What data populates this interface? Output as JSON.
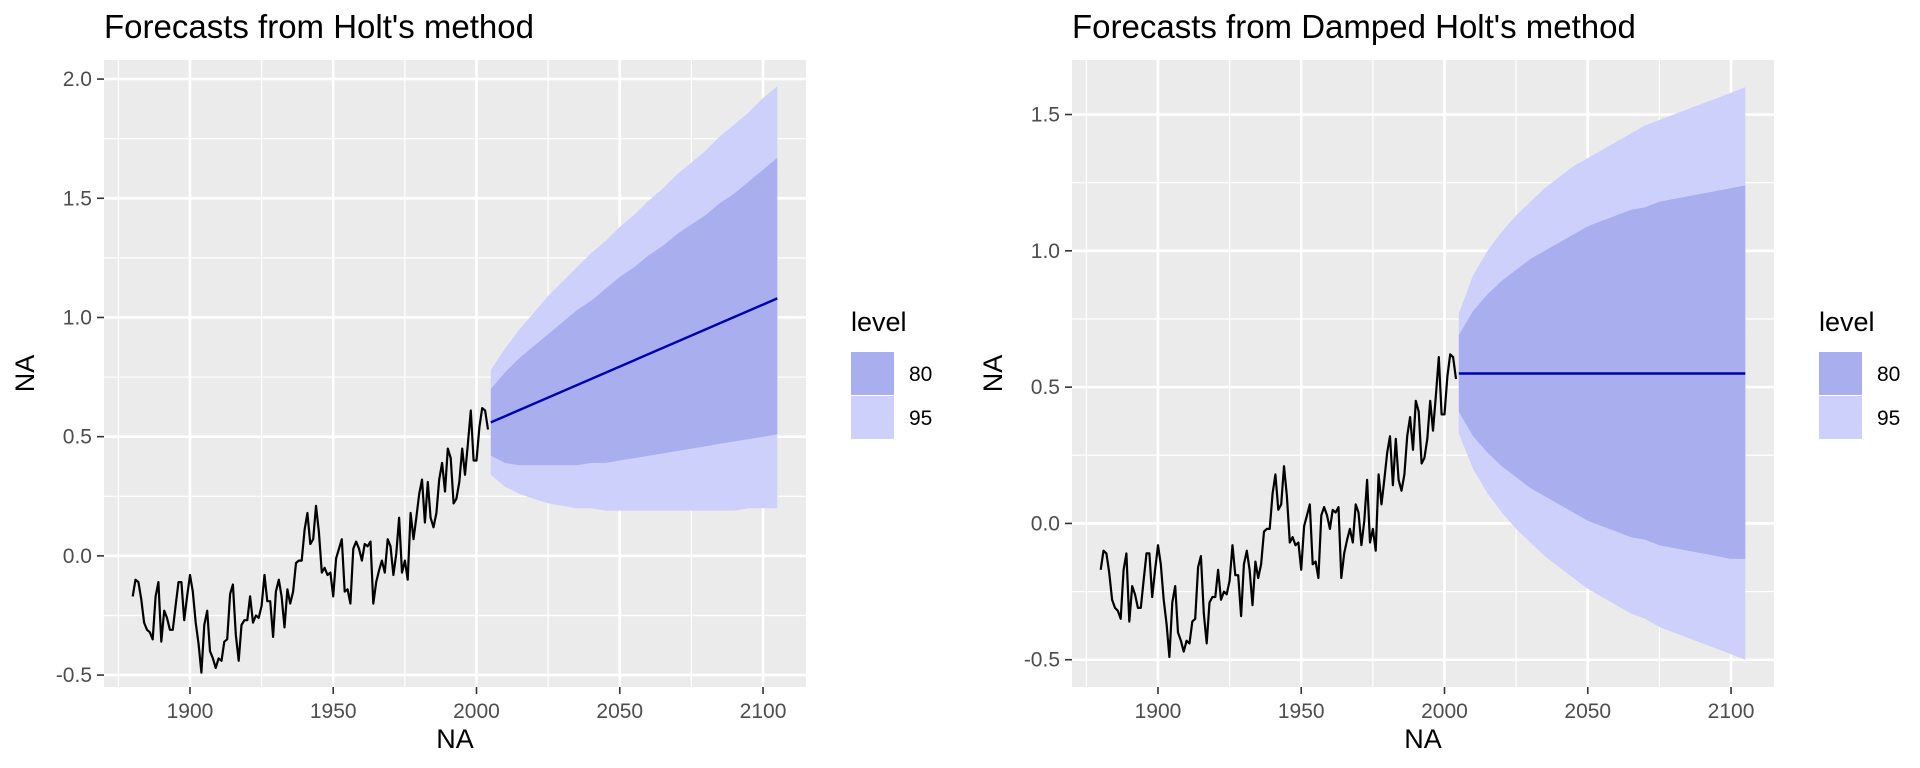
{
  "chart_data": [
    {
      "type": "line",
      "title": "Forecasts from Holt's method",
      "xlabel": "NA",
      "ylabel": "NA",
      "xlim": [
        1870,
        2115
      ],
      "ylim": [
        -0.55,
        2.08
      ],
      "x_ticks": [
        1900,
        1950,
        2000,
        2050,
        2100
      ],
      "x_tick_labels": [
        "1900",
        "1950",
        "2000",
        "2050",
        "2100"
      ],
      "y_ticks": [
        -0.5,
        0.0,
        0.5,
        1.0,
        1.5,
        2.0
      ],
      "y_tick_labels": [
        "-0.5",
        "0.0",
        "0.5",
        "1.0",
        "1.5",
        "2.0"
      ],
      "grid": true,
      "legend": {
        "title": "level",
        "placement": "right",
        "entries": [
          "80",
          "95"
        ]
      },
      "series": [
        {
          "kind": "observed",
          "x": [
            1880,
            1881,
            1882,
            1883,
            1884,
            1885,
            1886,
            1887,
            1888,
            1889,
            1890,
            1891,
            1892,
            1893,
            1894,
            1895,
            1896,
            1897,
            1898,
            1899,
            1900,
            1901,
            1902,
            1903,
            1904,
            1905,
            1906,
            1907,
            1908,
            1909,
            1910,
            1911,
            1912,
            1913,
            1914,
            1915,
            1916,
            1917,
            1918,
            1919,
            1920,
            1921,
            1922,
            1923,
            1924,
            1925,
            1926,
            1927,
            1928,
            1929,
            1930,
            1931,
            1932,
            1933,
            1934,
            1935,
            1936,
            1937,
            1938,
            1939,
            1940,
            1941,
            1942,
            1943,
            1944,
            1945,
            1946,
            1947,
            1948,
            1949,
            1950,
            1951,
            1952,
            1953,
            1954,
            1955,
            1956,
            1957,
            1958,
            1959,
            1960,
            1961,
            1962,
            1963,
            1964,
            1965,
            1966,
            1967,
            1968,
            1969,
            1970,
            1971,
            1972,
            1973,
            1974,
            1975,
            1976,
            1977,
            1978,
            1979,
            1980,
            1981,
            1982,
            1983,
            1984,
            1985,
            1986,
            1987,
            1988,
            1989,
            1990,
            1991,
            1992,
            1993,
            1994,
            1995,
            1996,
            1997,
            1998,
            1999,
            2000,
            2001,
            2002,
            2003,
            2004
          ],
          "y": [
            -0.17,
            -0.1,
            -0.11,
            -0.18,
            -0.28,
            -0.31,
            -0.32,
            -0.35,
            -0.17,
            -0.11,
            -0.36,
            -0.23,
            -0.26,
            -0.31,
            -0.31,
            -0.21,
            -0.11,
            -0.11,
            -0.27,
            -0.17,
            -0.08,
            -0.15,
            -0.28,
            -0.37,
            -0.49,
            -0.29,
            -0.23,
            -0.4,
            -0.43,
            -0.47,
            -0.43,
            -0.44,
            -0.36,
            -0.35,
            -0.16,
            -0.12,
            -0.33,
            -0.44,
            -0.29,
            -0.27,
            -0.27,
            -0.17,
            -0.28,
            -0.25,
            -0.26,
            -0.21,
            -0.08,
            -0.19,
            -0.19,
            -0.34,
            -0.15,
            -0.1,
            -0.17,
            -0.3,
            -0.14,
            -0.2,
            -0.15,
            -0.03,
            -0.02,
            -0.02,
            0.11,
            0.18,
            0.05,
            0.07,
            0.21,
            0.1,
            -0.07,
            -0.05,
            -0.08,
            -0.07,
            -0.17,
            -0.01,
            0.03,
            0.07,
            -0.15,
            -0.14,
            -0.2,
            0.03,
            0.06,
            0.03,
            -0.02,
            0.05,
            0.04,
            0.06,
            -0.2,
            -0.11,
            -0.06,
            -0.02,
            -0.07,
            0.07,
            0.04,
            -0.08,
            0.01,
            0.16,
            -0.07,
            -0.02,
            -0.1,
            0.18,
            0.07,
            0.16,
            0.26,
            0.32,
            0.14,
            0.31,
            0.16,
            0.12,
            0.18,
            0.32,
            0.39,
            0.27,
            0.45,
            0.41,
            0.22,
            0.24,
            0.31,
            0.45,
            0.34,
            0.47,
            0.61,
            0.4,
            0.4,
            0.54,
            0.62,
            0.61,
            0.53
          ]
        },
        {
          "kind": "forecast",
          "x": [
            2005,
            2105
          ],
          "y": [
            0.56,
            1.08
          ]
        }
      ],
      "intervals": {
        "x": [
          2005,
          2010,
          2015,
          2020,
          2025,
          2030,
          2035,
          2040,
          2045,
          2050,
          2055,
          2060,
          2065,
          2070,
          2075,
          2080,
          2085,
          2090,
          2095,
          2100,
          2105
        ],
        "lo80": [
          0.42,
          0.39,
          0.38,
          0.38,
          0.38,
          0.38,
          0.38,
          0.39,
          0.39,
          0.4,
          0.41,
          0.42,
          0.43,
          0.44,
          0.45,
          0.46,
          0.47,
          0.48,
          0.49,
          0.5,
          0.51
        ],
        "hi80": [
          0.7,
          0.77,
          0.83,
          0.88,
          0.93,
          0.98,
          1.03,
          1.07,
          1.12,
          1.17,
          1.21,
          1.26,
          1.3,
          1.35,
          1.39,
          1.43,
          1.48,
          1.52,
          1.57,
          1.62,
          1.67
        ],
        "lo95": [
          0.34,
          0.29,
          0.26,
          0.24,
          0.22,
          0.21,
          0.2,
          0.2,
          0.19,
          0.19,
          0.19,
          0.19,
          0.19,
          0.19,
          0.19,
          0.19,
          0.19,
          0.19,
          0.2,
          0.2,
          0.2
        ],
        "hi95": [
          0.78,
          0.87,
          0.95,
          1.02,
          1.09,
          1.15,
          1.21,
          1.27,
          1.32,
          1.38,
          1.43,
          1.49,
          1.54,
          1.6,
          1.65,
          1.7,
          1.76,
          1.81,
          1.86,
          1.92,
          1.97
        ]
      }
    },
    {
      "type": "line",
      "title": "Forecasts from Damped Holt's method",
      "xlabel": "NA",
      "ylabel": "NA",
      "xlim": [
        1870,
        2115
      ],
      "ylim": [
        -0.6,
        1.7
      ],
      "x_ticks": [
        1900,
        1950,
        2000,
        2050,
        2100
      ],
      "x_tick_labels": [
        "1900",
        "1950",
        "2000",
        "2050",
        "2100"
      ],
      "y_ticks": [
        -0.5,
        0.0,
        0.5,
        1.0,
        1.5
      ],
      "y_tick_labels": [
        "-0.5",
        "0.0",
        "0.5",
        "1.0",
        "1.5"
      ],
      "grid": true,
      "legend": {
        "title": "level",
        "placement": "right",
        "entries": [
          "80",
          "95"
        ]
      },
      "series": [
        {
          "kind": "observed",
          "x": [
            1880,
            1881,
            1882,
            1883,
            1884,
            1885,
            1886,
            1887,
            1888,
            1889,
            1890,
            1891,
            1892,
            1893,
            1894,
            1895,
            1896,
            1897,
            1898,
            1899,
            1900,
            1901,
            1902,
            1903,
            1904,
            1905,
            1906,
            1907,
            1908,
            1909,
            1910,
            1911,
            1912,
            1913,
            1914,
            1915,
            1916,
            1917,
            1918,
            1919,
            1920,
            1921,
            1922,
            1923,
            1924,
            1925,
            1926,
            1927,
            1928,
            1929,
            1930,
            1931,
            1932,
            1933,
            1934,
            1935,
            1936,
            1937,
            1938,
            1939,
            1940,
            1941,
            1942,
            1943,
            1944,
            1945,
            1946,
            1947,
            1948,
            1949,
            1950,
            1951,
            1952,
            1953,
            1954,
            1955,
            1956,
            1957,
            1958,
            1959,
            1960,
            1961,
            1962,
            1963,
            1964,
            1965,
            1966,
            1967,
            1968,
            1969,
            1970,
            1971,
            1972,
            1973,
            1974,
            1975,
            1976,
            1977,
            1978,
            1979,
            1980,
            1981,
            1982,
            1983,
            1984,
            1985,
            1986,
            1987,
            1988,
            1989,
            1990,
            1991,
            1992,
            1993,
            1994,
            1995,
            1996,
            1997,
            1998,
            1999,
            2000,
            2001,
            2002,
            2003,
            2004
          ],
          "y": [
            -0.17,
            -0.1,
            -0.11,
            -0.18,
            -0.28,
            -0.31,
            -0.32,
            -0.35,
            -0.17,
            -0.11,
            -0.36,
            -0.23,
            -0.26,
            -0.31,
            -0.31,
            -0.21,
            -0.11,
            -0.11,
            -0.27,
            -0.17,
            -0.08,
            -0.15,
            -0.28,
            -0.37,
            -0.49,
            -0.29,
            -0.23,
            -0.4,
            -0.43,
            -0.47,
            -0.43,
            -0.44,
            -0.36,
            -0.35,
            -0.16,
            -0.12,
            -0.33,
            -0.44,
            -0.29,
            -0.27,
            -0.27,
            -0.17,
            -0.28,
            -0.25,
            -0.26,
            -0.21,
            -0.08,
            -0.19,
            -0.19,
            -0.34,
            -0.15,
            -0.1,
            -0.17,
            -0.3,
            -0.14,
            -0.2,
            -0.15,
            -0.03,
            -0.02,
            -0.02,
            0.11,
            0.18,
            0.05,
            0.07,
            0.21,
            0.1,
            -0.07,
            -0.05,
            -0.08,
            -0.07,
            -0.17,
            -0.01,
            0.03,
            0.07,
            -0.15,
            -0.14,
            -0.2,
            0.03,
            0.06,
            0.03,
            -0.02,
            0.05,
            0.04,
            0.06,
            -0.2,
            -0.11,
            -0.06,
            -0.02,
            -0.07,
            0.07,
            0.04,
            -0.08,
            0.01,
            0.16,
            -0.07,
            -0.02,
            -0.1,
            0.18,
            0.07,
            0.16,
            0.26,
            0.32,
            0.14,
            0.31,
            0.16,
            0.12,
            0.18,
            0.32,
            0.39,
            0.27,
            0.45,
            0.41,
            0.22,
            0.24,
            0.31,
            0.45,
            0.34,
            0.47,
            0.61,
            0.4,
            0.4,
            0.54,
            0.62,
            0.61,
            0.53
          ]
        },
        {
          "kind": "forecast",
          "x": [
            2005,
            2105
          ],
          "y": [
            0.55,
            0.55
          ]
        }
      ],
      "intervals": {
        "x": [
          2005,
          2010,
          2015,
          2020,
          2025,
          2030,
          2035,
          2040,
          2045,
          2050,
          2055,
          2060,
          2065,
          2070,
          2075,
          2080,
          2085,
          2090,
          2095,
          2100,
          2105
        ],
        "lo80": [
          0.41,
          0.32,
          0.26,
          0.21,
          0.17,
          0.13,
          0.1,
          0.07,
          0.04,
          0.01,
          -0.01,
          -0.03,
          -0.05,
          -0.06,
          -0.08,
          -0.09,
          -0.1,
          -0.11,
          -0.12,
          -0.13,
          -0.13
        ],
        "hi80": [
          0.69,
          0.78,
          0.84,
          0.89,
          0.93,
          0.97,
          1.0,
          1.03,
          1.06,
          1.09,
          1.11,
          1.13,
          1.15,
          1.16,
          1.18,
          1.19,
          1.2,
          1.21,
          1.22,
          1.23,
          1.24
        ],
        "lo95": [
          0.33,
          0.2,
          0.11,
          0.04,
          -0.02,
          -0.07,
          -0.12,
          -0.16,
          -0.2,
          -0.24,
          -0.27,
          -0.3,
          -0.33,
          -0.35,
          -0.38,
          -0.4,
          -0.42,
          -0.44,
          -0.46,
          -0.48,
          -0.5
        ],
        "hi95": [
          0.77,
          0.91,
          1.0,
          1.07,
          1.13,
          1.18,
          1.23,
          1.27,
          1.31,
          1.34,
          1.37,
          1.4,
          1.43,
          1.46,
          1.48,
          1.5,
          1.52,
          1.54,
          1.56,
          1.58,
          1.6
        ]
      }
    }
  ],
  "colors": {
    "panel_bg": "#ebebeb",
    "grid_major": "#ffffff",
    "band80": "#a9aeee",
    "band95": "#ccd0fb",
    "observed_line": "#000000",
    "forecast_line": "#0000b3"
  }
}
